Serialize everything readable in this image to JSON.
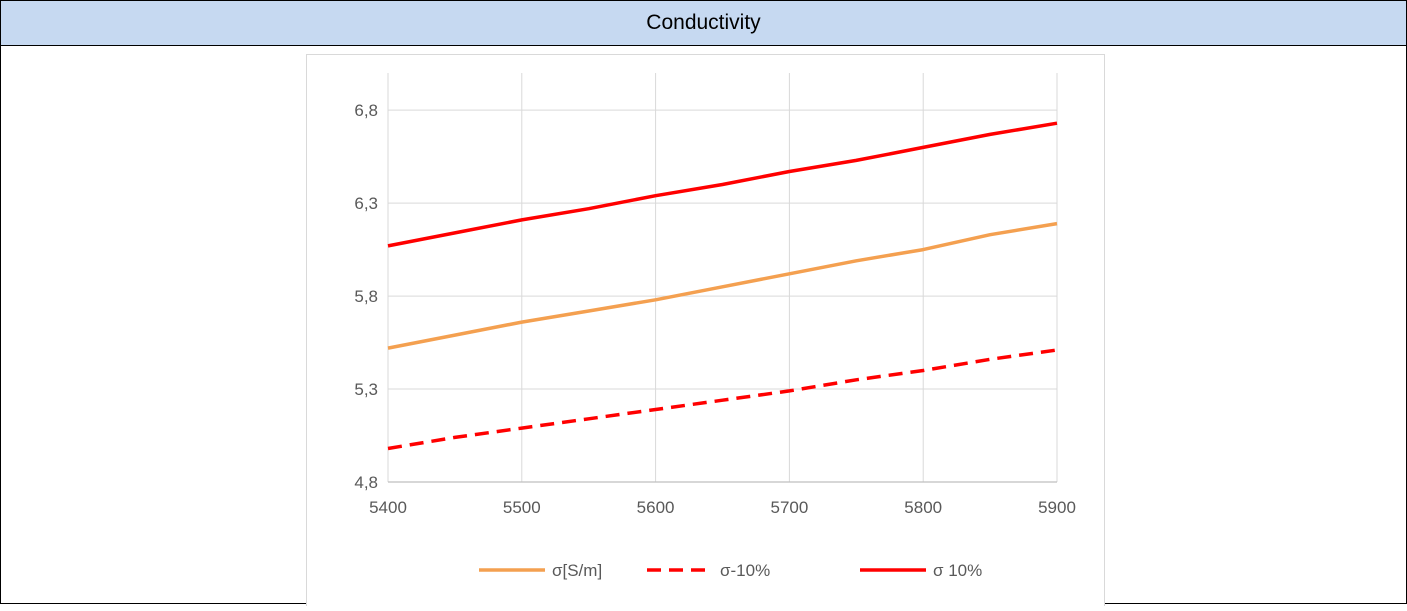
{
  "header": {
    "title": "Conductivity"
  },
  "chart_data": {
    "type": "line",
    "title": "",
    "xlabel": "",
    "ylabel": "",
    "x": [
      5400,
      5450,
      5500,
      5550,
      5600,
      5650,
      5700,
      5750,
      5800,
      5850,
      5900
    ],
    "xlim": [
      5400,
      5900
    ],
    "ylim": [
      4.8,
      7.0
    ],
    "x_ticks": [
      "5400",
      "5500",
      "5600",
      "5700",
      "5800",
      "5900"
    ],
    "x_tick_values": [
      5400,
      5500,
      5600,
      5700,
      5800,
      5900
    ],
    "y_ticks": [
      "4,8",
      "5,3",
      "5,8",
      "6,3",
      "6,8"
    ],
    "y_tick_values": [
      4.8,
      5.3,
      5.8,
      6.3,
      6.8
    ],
    "grid": true,
    "legend": "bottom",
    "series": [
      {
        "name": "σ[S/m]",
        "color": "#f4a050",
        "dash": "solid",
        "values": [
          5.52,
          5.59,
          5.66,
          5.72,
          5.78,
          5.85,
          5.92,
          5.99,
          6.05,
          6.13,
          6.19
        ]
      },
      {
        "name": "σ-10%",
        "color": "#ff0000",
        "dash": "dashed",
        "values": [
          4.98,
          5.04,
          5.09,
          5.14,
          5.19,
          5.24,
          5.29,
          5.35,
          5.4,
          5.46,
          5.51
        ]
      },
      {
        "name": "σ 10%",
        "color": "#ff0000",
        "dash": "solid",
        "values": [
          6.07,
          6.14,
          6.21,
          6.27,
          6.34,
          6.4,
          6.47,
          6.53,
          6.6,
          6.67,
          6.73
        ]
      }
    ]
  }
}
